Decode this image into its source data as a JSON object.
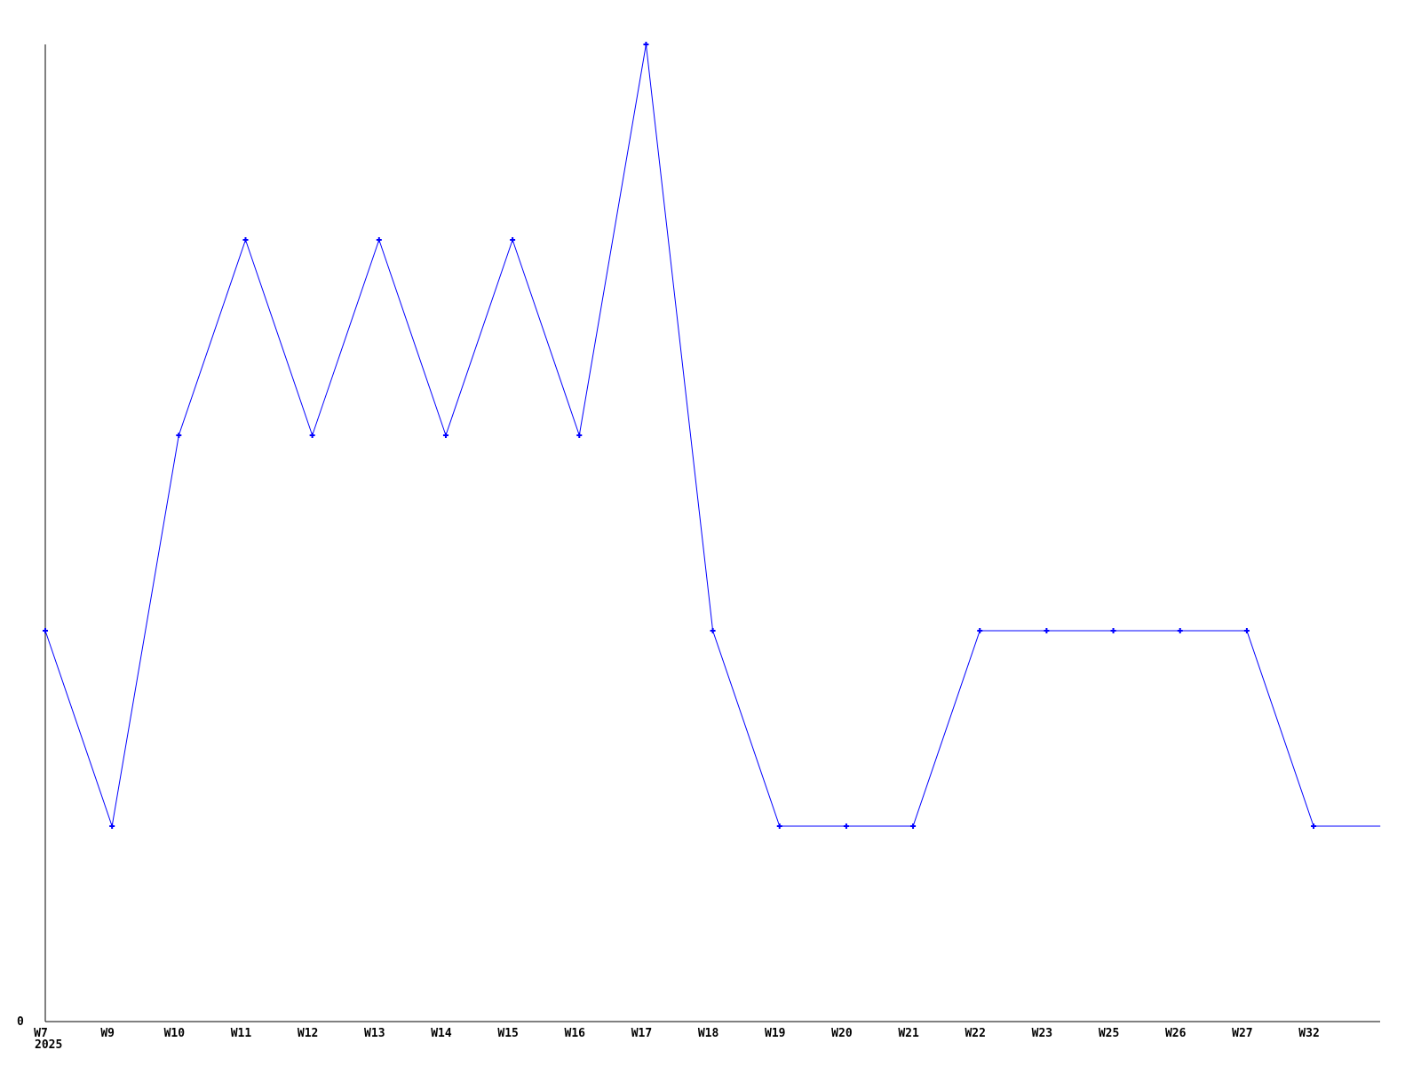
{
  "chart_data": {
    "type": "line",
    "title": "",
    "xlabel": "",
    "ylabel": "",
    "categories": [
      "W7",
      "W9",
      "W10",
      "W11",
      "W12",
      "W13",
      "W14",
      "W15",
      "W16",
      "W17",
      "W18",
      "W19",
      "W20",
      "W21",
      "W22",
      "W23",
      "W25",
      "W26",
      "W27",
      "W32"
    ],
    "values": [
      2,
      1,
      3,
      4,
      3,
      4,
      3,
      4,
      3,
      5,
      2,
      1,
      1,
      1,
      2,
      2,
      2,
      2,
      2,
      1
    ],
    "trailing_unlabeled_value": 1,
    "year_label": "2025",
    "y_origin_label": "0",
    "ylim": [
      0,
      5
    ],
    "grid": false,
    "legend": false,
    "marker": "plus",
    "colors": {
      "line": "#0000ff",
      "axis": "#000000",
      "text": "#000000",
      "background": "#ffffff"
    }
  }
}
